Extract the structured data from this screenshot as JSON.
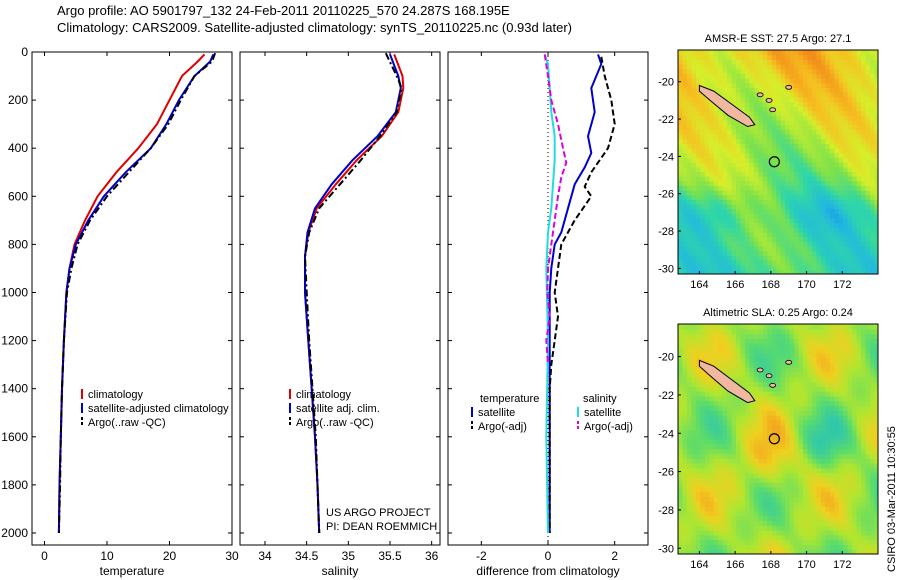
{
  "header": {
    "line1": "Argo profile: AO 5901797_132 24-Feb-2011 20110225_570 24.287S 168.195E",
    "line2": "Climatology: CARS2009. Satellite-adjusted climatology: synTS_20110225.nc (0.93d later)"
  },
  "colors": {
    "climatology": "#e00000",
    "satellite": "#0000cc",
    "argo": "#000000",
    "sal_satellite": "#22dddd",
    "sal_argo": "#dd00dd"
  },
  "chart_data": [
    {
      "type": "line",
      "name": "temperature-profile",
      "xlabel": "temperature",
      "ylabel": "",
      "xlim": [
        -2,
        30
      ],
      "ylim": [
        2050,
        0
      ],
      "reverse_y": true,
      "xticks": [
        0,
        10,
        20,
        30
      ],
      "yticks": [
        0,
        200,
        400,
        600,
        800,
        1000,
        1200,
        1400,
        1600,
        1800,
        2000
      ],
      "legend_position": "lower-middle",
      "series": [
        {
          "name": "climatology",
          "style": "solid",
          "color": "#e00000",
          "points": [
            [
              25.6,
              10
            ],
            [
              24.5,
              40
            ],
            [
              22.0,
              100
            ],
            [
              20.0,
              200
            ],
            [
              18.0,
              300
            ],
            [
              15.0,
              400
            ],
            [
              11.5,
              500
            ],
            [
              8.5,
              600
            ],
            [
              6.5,
              700
            ],
            [
              4.8,
              800
            ],
            [
              4.0,
              900
            ],
            [
              3.5,
              1000
            ],
            [
              3.1,
              1200
            ],
            [
              2.8,
              1400
            ],
            [
              2.6,
              1600
            ],
            [
              2.4,
              1800
            ],
            [
              2.3,
              2000
            ]
          ]
        },
        {
          "name": "satellite-adjusted climatology",
          "style": "solid",
          "color": "#0000cc",
          "points": [
            [
              27.0,
              10
            ],
            [
              26.5,
              40
            ],
            [
              24.0,
              100
            ],
            [
              21.5,
              200
            ],
            [
              19.5,
              300
            ],
            [
              17.0,
              400
            ],
            [
              13.0,
              500
            ],
            [
              9.5,
              600
            ],
            [
              7.0,
              700
            ],
            [
              5.0,
              800
            ],
            [
              4.0,
              900
            ],
            [
              3.5,
              1000
            ],
            [
              3.1,
              1200
            ],
            [
              2.8,
              1400
            ],
            [
              2.6,
              1600
            ],
            [
              2.4,
              1800
            ],
            [
              2.3,
              2000
            ]
          ]
        },
        {
          "name": "Argo(..raw -QC)",
          "style": "dashdot",
          "color": "#000000",
          "points": [
            [
              27.3,
              5
            ],
            [
              26.8,
              40
            ],
            [
              24.0,
              100
            ],
            [
              21.8,
              200
            ],
            [
              19.8,
              300
            ],
            [
              17.0,
              400
            ],
            [
              13.5,
              500
            ],
            [
              10.0,
              600
            ],
            [
              7.3,
              700
            ],
            [
              5.3,
              800
            ],
            [
              4.3,
              900
            ],
            [
              3.6,
              1000
            ],
            [
              3.1,
              1200
            ],
            [
              2.8,
              1400
            ],
            [
              2.6,
              1600
            ],
            [
              2.5,
              1800
            ],
            [
              2.3,
              2000
            ]
          ]
        }
      ]
    },
    {
      "type": "line",
      "name": "salinity-profile",
      "xlabel": "salinity",
      "ylabel": "",
      "xlim": [
        33.7,
        36.1
      ],
      "ylim": [
        2050,
        0
      ],
      "reverse_y": true,
      "xticks": [
        34,
        34.5,
        35,
        35.5,
        36
      ],
      "legend_position": "lower-middle",
      "series": [
        {
          "name": "climatology",
          "style": "solid",
          "color": "#e00000",
          "points": [
            [
              35.55,
              10
            ],
            [
              35.65,
              100
            ],
            [
              35.66,
              150
            ],
            [
              35.6,
              250
            ],
            [
              35.4,
              350
            ],
            [
              35.1,
              450
            ],
            [
              34.85,
              550
            ],
            [
              34.62,
              650
            ],
            [
              34.52,
              750
            ],
            [
              34.48,
              850
            ],
            [
              34.48,
              1000
            ],
            [
              34.52,
              1200
            ],
            [
              34.56,
              1400
            ],
            [
              34.6,
              1600
            ],
            [
              34.63,
              1800
            ],
            [
              34.65,
              2000
            ]
          ]
        },
        {
          "name": "satellite adj. clim.",
          "style": "solid",
          "color": "#0000cc",
          "points": [
            [
              35.5,
              10
            ],
            [
              35.6,
              100
            ],
            [
              35.63,
              150
            ],
            [
              35.57,
              250
            ],
            [
              35.35,
              350
            ],
            [
              35.05,
              450
            ],
            [
              34.8,
              550
            ],
            [
              34.6,
              650
            ],
            [
              34.51,
              750
            ],
            [
              34.48,
              850
            ],
            [
              34.48,
              1000
            ],
            [
              34.52,
              1200
            ],
            [
              34.56,
              1400
            ],
            [
              34.6,
              1600
            ],
            [
              34.63,
              1800
            ],
            [
              34.65,
              2000
            ]
          ]
        },
        {
          "name": "Argo(..raw -QC)",
          "style": "dashdot",
          "color": "#000000",
          "points": [
            [
              35.45,
              5
            ],
            [
              35.58,
              100
            ],
            [
              35.64,
              150
            ],
            [
              35.58,
              250
            ],
            [
              35.38,
              350
            ],
            [
              35.15,
              450
            ],
            [
              34.9,
              550
            ],
            [
              34.65,
              650
            ],
            [
              34.53,
              750
            ],
            [
              34.48,
              850
            ],
            [
              34.5,
              1000
            ],
            [
              34.53,
              1200
            ],
            [
              34.57,
              1400
            ],
            [
              34.61,
              1600
            ],
            [
              34.63,
              1800
            ],
            [
              34.65,
              2000
            ]
          ]
        }
      ],
      "annotation": {
        "line1": "US ARGO PROJECT",
        "line2": "PI: DEAN ROEMMICH"
      }
    },
    {
      "type": "line",
      "name": "difference-profile",
      "xlabel": "difference from climatology",
      "ylabel": "",
      "xlim": [
        -3,
        3
      ],
      "ylim": [
        2050,
        0
      ],
      "reverse_y": true,
      "xticks": [
        -2,
        0,
        2
      ],
      "legend_position": "lower-middle",
      "legend_headers": {
        "left": "temperature",
        "right": "salinity"
      },
      "series": [
        {
          "name": "satellite",
          "group": "temperature",
          "style": "solid",
          "color": "#0000cc",
          "points": [
            [
              1.5,
              10
            ],
            [
              1.6,
              50
            ],
            [
              1.3,
              150
            ],
            [
              1.4,
              250
            ],
            [
              1.2,
              350
            ],
            [
              1.3,
              420
            ],
            [
              1.1,
              480
            ],
            [
              0.8,
              550
            ],
            [
              0.6,
              650
            ],
            [
              0.4,
              750
            ],
            [
              0.2,
              800
            ],
            [
              0.1,
              900
            ],
            [
              0.05,
              1000
            ],
            [
              0.05,
              1500
            ],
            [
              0.05,
              2000
            ]
          ]
        },
        {
          "name": "Argo(-adj)",
          "group": "temperature",
          "style": "dashed",
          "color": "#000000",
          "points": [
            [
              1.6,
              20
            ],
            [
              1.7,
              100
            ],
            [
              1.9,
              200
            ],
            [
              2.0,
              300
            ],
            [
              1.8,
              400
            ],
            [
              1.3,
              500
            ],
            [
              1.1,
              560
            ],
            [
              1.3,
              600
            ],
            [
              0.8,
              700
            ],
            [
              0.4,
              800
            ],
            [
              0.3,
              900
            ],
            [
              0.2,
              1000
            ],
            [
              0.3,
              1100
            ],
            [
              0.2,
              1200
            ],
            [
              0.1,
              1300
            ],
            [
              0.05,
              1400
            ],
            [
              0.05,
              2000
            ]
          ]
        },
        {
          "name": "satellite",
          "group": "salinity",
          "style": "solid",
          "color": "#22dddd",
          "points": [
            [
              -0.1,
              10
            ],
            [
              0.0,
              50
            ],
            [
              0.05,
              150
            ],
            [
              0.1,
              250
            ],
            [
              0.2,
              350
            ],
            [
              0.2,
              450
            ],
            [
              0.15,
              550
            ],
            [
              0.1,
              650
            ],
            [
              0.0,
              750
            ],
            [
              -0.05,
              900
            ],
            [
              0.0,
              1200
            ],
            [
              -0.05,
              1600
            ],
            [
              0.0,
              2000
            ]
          ]
        },
        {
          "name": "Argo(-adj)",
          "group": "salinity",
          "style": "dashed",
          "color": "#dd00dd",
          "points": [
            [
              -0.1,
              10
            ],
            [
              0.0,
              100
            ],
            [
              0.1,
              200
            ],
            [
              0.3,
              300
            ],
            [
              0.45,
              400
            ],
            [
              0.55,
              460
            ],
            [
              0.4,
              520
            ],
            [
              0.3,
              600
            ],
            [
              0.2,
              700
            ],
            [
              0.1,
              800
            ],
            [
              0.0,
              900
            ],
            [
              -0.02,
              1000
            ],
            [
              0.05,
              1100
            ],
            [
              -0.05,
              1200
            ],
            [
              0.0,
              1300
            ]
          ]
        }
      ]
    },
    {
      "type": "heatmap",
      "name": "sst-map",
      "title": "AMSR-E SST: 27.5 Argo: 27.1",
      "xlim": [
        162.8,
        174
      ],
      "ylim": [
        -30.3,
        -18.3
      ],
      "xticks": [
        164,
        166,
        168,
        170,
        172
      ],
      "yticks": [
        -20,
        -22,
        -24,
        -26,
        -28,
        -30
      ],
      "float_position": {
        "lon": 168.195,
        "lat": -24.287
      }
    },
    {
      "type": "heatmap",
      "name": "sla-map",
      "title": "Altimetric SLA: 0.25 Argo: 0.24",
      "xlim": [
        162.8,
        174
      ],
      "ylim": [
        -30.3,
        -18.3
      ],
      "xticks": [
        164,
        166,
        168,
        170,
        172
      ],
      "yticks": [
        -20,
        -22,
        -24,
        -26,
        -28,
        -30
      ],
      "float_position": {
        "lon": 168.195,
        "lat": -24.287
      }
    }
  ],
  "footer": {
    "stamp": "CSIRO 03-Mar-2011 10:30:55"
  }
}
